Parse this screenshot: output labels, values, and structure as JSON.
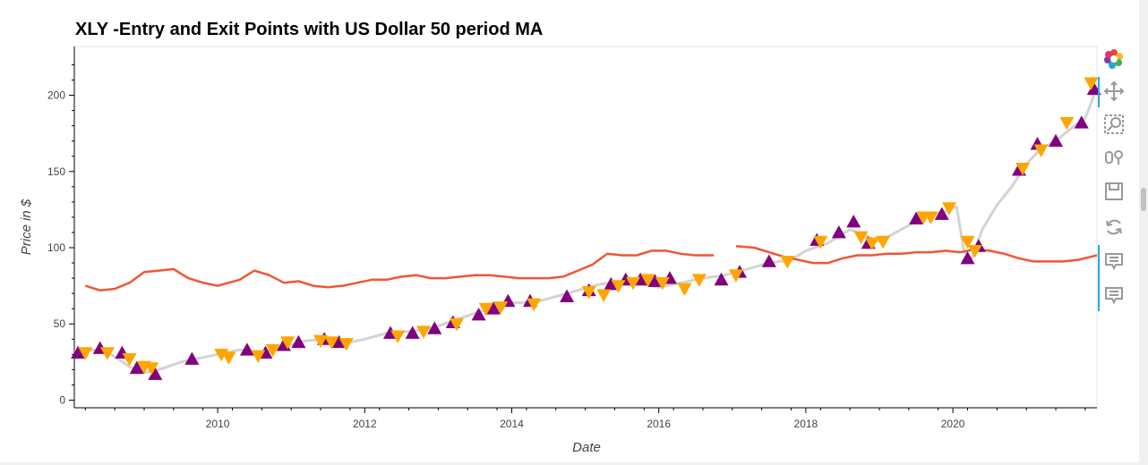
{
  "chart_data": {
    "type": "line",
    "title": "XLY -Entry and Exit Points with US Dollar 50 period MA",
    "xlabel": "Date",
    "ylabel": "Price in $",
    "xlim": [
      2008.05,
      2021.96
    ],
    "ylim": [
      -5,
      232
    ],
    "x_ticks": [
      2010,
      2012,
      2014,
      2016,
      2018,
      2020
    ],
    "x_tick_labels": [
      "2010",
      "2012",
      "2014",
      "2016",
      "2018",
      "2020"
    ],
    "y_ticks": [
      0,
      50,
      100,
      150,
      200
    ],
    "y_tick_labels": [
      "0",
      "50",
      "100",
      "150",
      "200"
    ],
    "grid": false,
    "colors": {
      "price": "#d3d3d3",
      "ma": "#ef5734",
      "entry": "#800080",
      "exit": "#ffa500"
    },
    "series": [
      {
        "style": "price-line",
        "x": [
          2008.05,
          2008.3,
          2008.55,
          2008.8,
          2009.0,
          2009.2,
          2009.5,
          2009.8,
          2010.0,
          2010.3,
          2010.6,
          2010.9,
          2011.2,
          2011.5,
          2011.8,
          2012.0,
          2012.3,
          2012.6,
          2012.9,
          2013.2,
          2013.5,
          2013.8,
          2014.0,
          2014.3,
          2014.6,
          2014.9,
          2015.2,
          2015.5,
          2015.8,
          2016.0,
          2016.3,
          2016.6,
          2016.9,
          2017.2,
          2017.5,
          2017.8,
          2018.0,
          2018.3,
          2018.6,
          2018.8,
          2019.0,
          2019.3,
          2019.6,
          2019.9,
          2020.05,
          2020.15,
          2020.25,
          2020.4,
          2020.6,
          2020.8,
          2021.0,
          2021.2,
          2021.4,
          2021.6,
          2021.8,
          2021.96
        ],
        "values": [
          32,
          33,
          30,
          22,
          18,
          20,
          25,
          28,
          30,
          33,
          31,
          35,
          39,
          40,
          38,
          40,
          44,
          45,
          47,
          52,
          57,
          62,
          64,
          64,
          68,
          72,
          76,
          78,
          76,
          74,
          77,
          80,
          82,
          86,
          90,
          92,
          98,
          103,
          112,
          108,
          104,
          112,
          120,
          124,
          127,
          98,
          92,
          112,
          128,
          140,
          155,
          165,
          170,
          178,
          185,
          205
        ]
      },
      {
        "style": "ma-line",
        "x": [
          2008.2,
          2008.4,
          2008.6,
          2008.8,
          2009.0,
          2009.2,
          2009.4,
          2009.6,
          2009.8,
          2010.0,
          2010.3,
          2010.5,
          2010.7,
          2010.9,
          2011.1,
          2011.3,
          2011.5,
          2011.7,
          2011.9,
          2012.1,
          2012.3,
          2012.5,
          2012.7,
          2012.9,
          2013.1,
          2013.3,
          2013.5,
          2013.7,
          2013.9,
          2014.1,
          2014.3,
          2014.5,
          2014.7,
          2014.9,
          2015.1,
          2015.3,
          2015.5,
          2015.7,
          2015.9,
          2016.1,
          2016.3,
          2016.5,
          2016.75
        ],
        "values": [
          75,
          72,
          73,
          77,
          84,
          85,
          86,
          80,
          77,
          75,
          79,
          85,
          82,
          77,
          78,
          75,
          74,
          75,
          77,
          79,
          79,
          81,
          82,
          80,
          80,
          81,
          82,
          82,
          81,
          80,
          80,
          80,
          81,
          85,
          89,
          96,
          95,
          95,
          98,
          98,
          96,
          95,
          95
        ]
      },
      {
        "style": "ma-line",
        "x": [
          2017.05,
          2017.3,
          2017.5,
          2017.7,
          2017.9,
          2018.1,
          2018.3,
          2018.5,
          2018.7,
          2018.9,
          2019.1,
          2019.3,
          2019.5,
          2019.7,
          2019.9,
          2020.1,
          2020.3,
          2020.5,
          2020.7,
          2020.9,
          2021.1,
          2021.3,
          2021.5,
          2021.7,
          2021.96
        ],
        "values": [
          101,
          100,
          97,
          94,
          92,
          90,
          90,
          93,
          95,
          95,
          96,
          96,
          97,
          97,
          98,
          97,
          99,
          98,
          96,
          93,
          91,
          91,
          91,
          92,
          95
        ]
      },
      {
        "style": "entry-markers",
        "x": [
          2008.1,
          2008.4,
          2008.7,
          2008.9,
          2009.15,
          2009.65,
          2010.4,
          2010.65,
          2010.9,
          2011.1,
          2011.45,
          2011.65,
          2012.35,
          2012.65,
          2012.95,
          2013.2,
          2013.55,
          2013.75,
          2013.95,
          2014.25,
          2014.75,
          2015.05,
          2015.35,
          2015.55,
          2015.75,
          2015.95,
          2016.15,
          2016.85,
          2017.1,
          2017.5,
          2018.15,
          2018.45,
          2018.65,
          2018.85,
          2019.5,
          2019.85,
          2020.2,
          2020.35,
          2020.9,
          2021.15,
          2021.4,
          2021.75,
          2021.92
        ],
        "values": [
          31,
          34,
          31,
          21,
          17,
          27,
          33,
          31,
          36,
          38,
          40,
          38,
          44,
          44,
          47,
          51,
          56,
          60,
          65,
          65,
          68,
          72,
          76,
          79,
          79,
          78,
          80,
          79,
          84,
          91,
          105,
          110,
          117,
          103,
          119,
          122,
          93,
          101,
          151,
          168,
          170,
          182,
          204
        ]
      },
      {
        "style": "exit-markers",
        "x": [
          2008.2,
          2008.5,
          2008.8,
          2009.0,
          2009.1,
          2010.05,
          2010.15,
          2010.55,
          2010.75,
          2010.95,
          2011.4,
          2011.55,
          2011.75,
          2012.45,
          2012.8,
          2013.25,
          2013.65,
          2013.85,
          2014.3,
          2015.05,
          2015.25,
          2015.45,
          2015.65,
          2015.85,
          2016.05,
          2016.35,
          2016.55,
          2017.05,
          2017.75,
          2018.2,
          2018.75,
          2018.9,
          2019.05,
          2019.6,
          2019.7,
          2019.95,
          2020.2,
          2020.3,
          2020.95,
          2021.2,
          2021.55,
          2021.88
        ],
        "values": [
          31,
          31,
          27,
          22,
          21,
          30,
          28,
          29,
          33,
          38,
          39,
          38,
          37,
          42,
          45,
          50,
          60,
          61,
          63,
          71,
          69,
          75,
          77,
          79,
          77,
          73,
          79,
          82,
          91,
          104,
          107,
          103,
          104,
          120,
          120,
          126,
          104,
          98,
          152,
          164,
          182,
          208
        ]
      }
    ]
  },
  "toolbar": {
    "icons": [
      "bokeh-logo-icon",
      "pan-icon",
      "box-zoom-icon",
      "wheel-zoom-icon",
      "save-icon",
      "reset-icon",
      "hover-icon",
      "hover-icon-2"
    ]
  }
}
